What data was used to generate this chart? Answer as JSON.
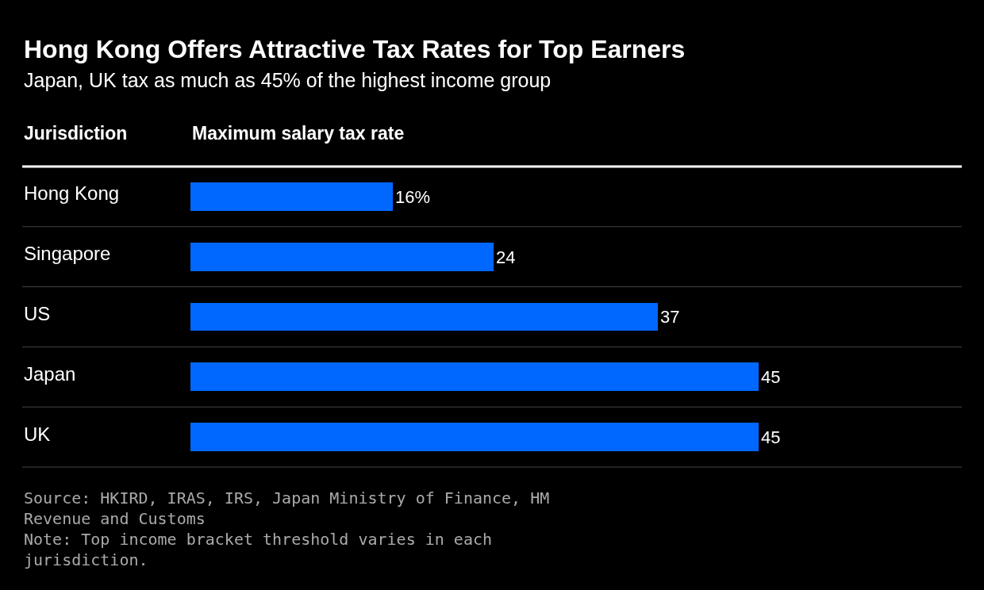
{
  "chart_data": {
    "type": "bar",
    "orientation": "horizontal",
    "title": "Hong Kong Offers Attractive Tax Rates for Top Earners",
    "subtitle": "Japan, UK tax as much as 45% of the highest income group",
    "ylabel": "Jurisdiction",
    "xlabel": "Maximum salary tax rate",
    "categories": [
      "Hong Kong",
      "Singapore",
      "US",
      "Japan",
      "UK"
    ],
    "values": [
      16,
      24,
      37,
      45,
      45
    ],
    "value_labels": [
      "16%",
      "24",
      "37",
      "45",
      "45"
    ],
    "color": "#0068ff",
    "annotations": [
      "Source: HKIRD, IRAS, IRS, Japan Ministry of Finance, HM Revenue and Customs",
      "Note: Top income bracket threshold varies in each jurisdiction."
    ],
    "legend": false
  }
}
